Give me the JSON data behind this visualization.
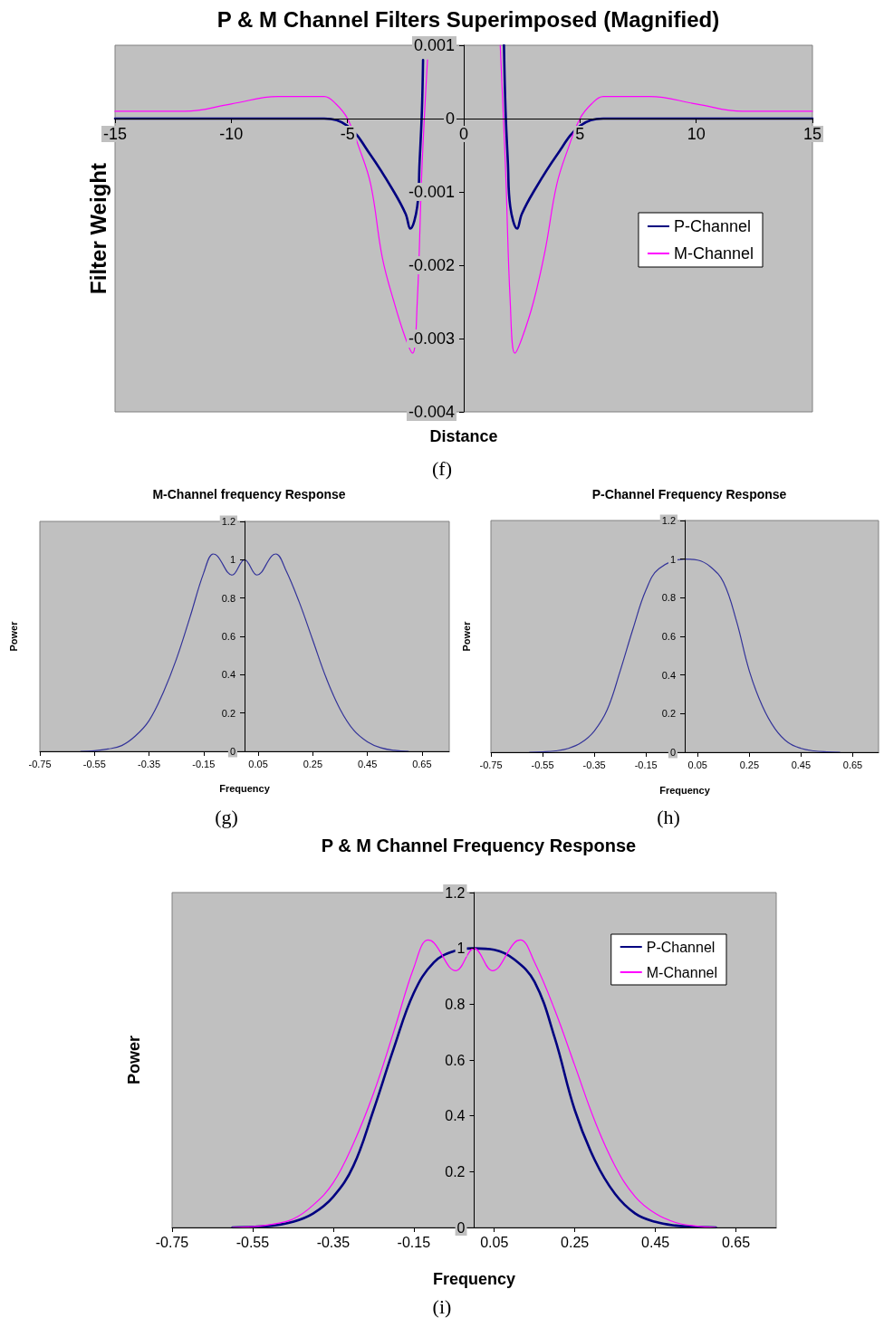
{
  "chart_data": [
    {
      "type": "line",
      "title": "P & M Channel Filters Superimposed (Magnified)",
      "xlabel": "Distance",
      "ylabel": "Filter Weight",
      "annotations": [
        "(f)"
      ],
      "xlim": [
        -15,
        15
      ],
      "xticks": [
        -15,
        -10,
        -5,
        0,
        5,
        10,
        15
      ],
      "ylim": [
        -0.004,
        0.001
      ],
      "yticks": [
        -0.004,
        -0.003,
        -0.002,
        -0.001,
        0,
        0.001
      ],
      "legend": "right",
      "series": [
        {
          "name": "P-Channel",
          "color": "#000080",
          "x": [
            -15,
            -12,
            -9,
            -7,
            -6,
            -5,
            -4,
            -3,
            -2.5,
            -2.3,
            -2,
            -1.9,
            -1.8,
            -1.75,
            0,
            1.73,
            1.8,
            1.9,
            2,
            2.3,
            2.5,
            3,
            4,
            5,
            6,
            7,
            9,
            12,
            15
          ],
          "values": [
            0,
            0,
            0,
            0,
            0,
            -0.0001,
            -0.0005,
            -0.001,
            -0.0013,
            -0.0015,
            -0.0012,
            -0.0006,
            0.0001,
            0.0008,
            null,
            0.001,
            0.0001,
            -0.0006,
            -0.0012,
            -0.0015,
            -0.0013,
            -0.001,
            -0.0005,
            -0.0001,
            0,
            0,
            0,
            0,
            0
          ]
        },
        {
          "name": "M-Channel",
          "color": "#ff00ff",
          "x": [
            -15,
            -12,
            -10,
            -8,
            -7,
            -6,
            -5.5,
            -5,
            -4.5,
            -4,
            -3.5,
            -3,
            -2.5,
            -2.2,
            -2,
            -1.8,
            -1.56,
            0,
            1.57,
            1.8,
            2,
            2.2,
            2.5,
            3,
            3.5,
            4,
            4.5,
            5,
            5.5,
            6,
            7,
            8,
            10,
            12,
            15
          ],
          "values": [
            0.0001,
            0.0001,
            0.0002,
            0.0003,
            0.0003,
            0.0003,
            0.0002,
            0,
            -0.0004,
            -0.0009,
            -0.0019,
            -0.0025,
            -0.003,
            -0.0032,
            -0.0025,
            -0.0007,
            0.0008,
            null,
            0.001,
            -0.0007,
            -0.0025,
            -0.0032,
            -0.003,
            -0.0025,
            -0.0018,
            -0.0009,
            -0.0004,
            0,
            0.0002,
            0.0003,
            0.0003,
            0.0003,
            0.0002,
            0.0001,
            0.0001
          ]
        }
      ]
    },
    {
      "type": "line",
      "title": "M-Channel frequency Response",
      "xlabel": "Frequency",
      "ylabel": "Power",
      "annotations": [
        "(g)"
      ],
      "xlim": [
        -0.75,
        0.75
      ],
      "xticks": [
        -0.75,
        -0.55,
        -0.35,
        -0.15,
        0.05,
        0.25,
        0.45,
        0.65
      ],
      "ylim": [
        0,
        1.2
      ],
      "yticks": [
        0,
        0.2,
        0.4,
        0.6,
        0.8,
        1,
        1.2
      ],
      "series": [
        {
          "color": "#333399",
          "x": [
            -0.6,
            -0.55,
            -0.5,
            -0.45,
            -0.4,
            -0.35,
            -0.3,
            -0.25,
            -0.2,
            -0.15,
            -0.115,
            -0.1,
            -0.045,
            0,
            0.045,
            0.1,
            0.115,
            0.15,
            0.2,
            0.25,
            0.3,
            0.35,
            0.4,
            0.45,
            0.5,
            0.55,
            0.6
          ],
          "values": [
            0,
            0.003,
            0.012,
            0.03,
            0.08,
            0.16,
            0.3,
            0.48,
            0.7,
            0.93,
            1.03,
            1.02,
            0.92,
            1,
            0.92,
            1.02,
            1.03,
            0.95,
            0.78,
            0.58,
            0.38,
            0.22,
            0.11,
            0.05,
            0.018,
            0.005,
            0
          ]
        }
      ]
    },
    {
      "type": "line",
      "title": "P-Channel Frequency Response",
      "xlabel": "Frequency",
      "ylabel": "Power",
      "annotations": [
        "(h)"
      ],
      "xlim": [
        -0.75,
        0.75
      ],
      "xticks": [
        -0.75,
        -0.55,
        -0.35,
        -0.15,
        0.05,
        0.25,
        0.45,
        0.65
      ],
      "ylim": [
        0,
        1.2
      ],
      "yticks": [
        0,
        0.2,
        0.4,
        0.6,
        0.8,
        1,
        1.2
      ],
      "series": [
        {
          "color": "#333399",
          "x": [
            -0.6,
            -0.55,
            -0.5,
            -0.45,
            -0.4,
            -0.35,
            -0.3,
            -0.25,
            -0.2,
            -0.15,
            -0.1,
            0,
            0.05,
            0.1,
            0.15,
            0.2,
            0.25,
            0.3,
            0.35,
            0.4,
            0.45,
            0.5,
            0.55,
            0.6
          ],
          "values": [
            0,
            0.002,
            0.007,
            0.02,
            0.05,
            0.11,
            0.22,
            0.42,
            0.64,
            0.84,
            0.95,
            1,
            0.995,
            0.96,
            0.88,
            0.68,
            0.42,
            0.24,
            0.12,
            0.05,
            0.02,
            0.007,
            0.002,
            0
          ]
        }
      ]
    },
    {
      "type": "line",
      "title": "P & M Channel Frequency Response",
      "xlabel": "Frequency",
      "ylabel": "Power",
      "annotations": [
        "(i)"
      ],
      "xlim": [
        -0.75,
        0.75
      ],
      "xticks": [
        -0.75,
        -0.55,
        -0.35,
        -0.15,
        0.05,
        0.25,
        0.45,
        0.65
      ],
      "ylim": [
        0,
        1.2
      ],
      "yticks": [
        0,
        0.2,
        0.4,
        0.6,
        0.8,
        1,
        1.2
      ],
      "legend": "top right",
      "series": [
        {
          "name": "P-Channel",
          "color": "#000080",
          "x": [
            -0.6,
            -0.55,
            -0.5,
            -0.45,
            -0.4,
            -0.35,
            -0.3,
            -0.25,
            -0.2,
            -0.15,
            -0.1,
            -0.05,
            0,
            0.05,
            0.1,
            0.15,
            0.2,
            0.25,
            0.3,
            0.35,
            0.4,
            0.45,
            0.5,
            0.55,
            0.6
          ],
          "values": [
            0,
            0.002,
            0.007,
            0.02,
            0.05,
            0.11,
            0.22,
            0.42,
            0.64,
            0.84,
            0.95,
            0.99,
            1,
            0.995,
            0.96,
            0.88,
            0.68,
            0.42,
            0.24,
            0.12,
            0.05,
            0.02,
            0.007,
            0.002,
            0
          ]
        },
        {
          "name": "M-Channel",
          "color": "#ff00ff",
          "x": [
            -0.6,
            -0.55,
            -0.5,
            -0.45,
            -0.4,
            -0.35,
            -0.3,
            -0.25,
            -0.2,
            -0.15,
            -0.115,
            -0.1,
            -0.045,
            0,
            0.045,
            0.1,
            0.115,
            0.15,
            0.2,
            0.25,
            0.3,
            0.35,
            0.4,
            0.45,
            0.5,
            0.55,
            0.6
          ],
          "values": [
            0,
            0.003,
            0.012,
            0.03,
            0.08,
            0.16,
            0.3,
            0.48,
            0.7,
            0.93,
            1.03,
            1.02,
            0.92,
            1,
            0.92,
            1.02,
            1.03,
            0.95,
            0.78,
            0.58,
            0.38,
            0.22,
            0.11,
            0.05,
            0.018,
            0.005,
            0
          ]
        }
      ]
    }
  ]
}
